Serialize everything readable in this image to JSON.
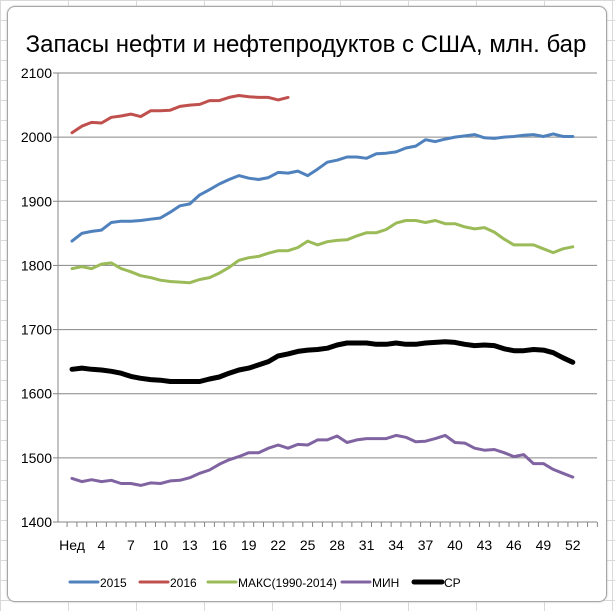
{
  "chart_data": {
    "type": "line",
    "title": "Запасы нефти и нефтепродуктов с США, млн. бар",
    "xlabel": "",
    "ylabel": "",
    "ylim": [
      1400,
      2100
    ],
    "yticks": [
      "1400",
      "1500",
      "1600",
      "1700",
      "1800",
      "1900",
      "2000",
      "2100"
    ],
    "xtick_labels": [
      {
        "week": 1,
        "label": "Нед"
      },
      {
        "week": 4,
        "label": "4"
      },
      {
        "week": 7,
        "label": "7"
      },
      {
        "week": 10,
        "label": "10"
      },
      {
        "week": 13,
        "label": "13"
      },
      {
        "week": 16,
        "label": "16"
      },
      {
        "week": 19,
        "label": "19"
      },
      {
        "week": 22,
        "label": "22"
      },
      {
        "week": 25,
        "label": "25"
      },
      {
        "week": 28,
        "label": "28"
      },
      {
        "week": 31,
        "label": "31"
      },
      {
        "week": 34,
        "label": "34"
      },
      {
        "week": 37,
        "label": "37"
      },
      {
        "week": 40,
        "label": "40"
      },
      {
        "week": 43,
        "label": "43"
      },
      {
        "week": 46,
        "label": "46"
      },
      {
        "week": 49,
        "label": "49"
      },
      {
        "week": 52,
        "label": "52"
      }
    ],
    "grid": true,
    "legend": "bottom",
    "series": [
      {
        "name": "2015",
        "color": "#4f81bd",
        "values": [
          1838,
          1850,
          1853,
          1855,
          1867,
          1869,
          1869,
          1870,
          1872,
          1874,
          1883,
          1893,
          1896,
          1910,
          1918,
          1927,
          1934,
          1940,
          1936,
          1934,
          1937,
          1945,
          1944,
          1947,
          1940,
          1950,
          1961,
          1964,
          1969,
          1969,
          1967,
          1974,
          1975,
          1977,
          1983,
          1986,
          1996,
          1993,
          1997,
          2000,
          2002,
          2004,
          1999,
          1998,
          2000,
          2001,
          2003,
          2004,
          2001,
          2005,
          2001,
          2001
        ]
      },
      {
        "name": "2016",
        "color": "#c0504d",
        "values": [
          2007,
          2017,
          2023,
          2022,
          2031,
          2033,
          2036,
          2032,
          2041,
          2041,
          2042,
          2048,
          2050,
          2051,
          2057,
          2057,
          2062,
          2065,
          2063,
          2062,
          2062,
          2058,
          2062
        ]
      },
      {
        "name": "МАКС(1990-2014)",
        "color": "#9bbb59",
        "values": [
          1795,
          1798,
          1795,
          1802,
          1804,
          1795,
          1790,
          1784,
          1781,
          1777,
          1775,
          1774,
          1773,
          1778,
          1781,
          1788,
          1797,
          1808,
          1812,
          1814,
          1819,
          1823,
          1823,
          1828,
          1838,
          1832,
          1837,
          1839,
          1840,
          1846,
          1851,
          1851,
          1856,
          1866,
          1870,
          1870,
          1867,
          1870,
          1865,
          1865,
          1860,
          1857,
          1859,
          1852,
          1841,
          1832,
          1832,
          1832,
          1826,
          1820,
          1826,
          1829
        ]
      },
      {
        "name": "МИН",
        "color": "#8064a2",
        "values": [
          1468,
          1463,
          1466,
          1463,
          1465,
          1460,
          1460,
          1457,
          1461,
          1460,
          1464,
          1465,
          1469,
          1476,
          1481,
          1490,
          1497,
          1502,
          1508,
          1508,
          1515,
          1520,
          1515,
          1521,
          1520,
          1528,
          1528,
          1534,
          1524,
          1528,
          1530,
          1530,
          1530,
          1535,
          1532,
          1525,
          1526,
          1530,
          1535,
          1524,
          1523,
          1515,
          1512,
          1513,
          1508,
          1502,
          1505,
          1491,
          1491,
          1482,
          1476,
          1470
        ]
      },
      {
        "name": "СР",
        "color": "#000000",
        "values": [
          1638,
          1640,
          1638,
          1637,
          1635,
          1632,
          1627,
          1624,
          1622,
          1621,
          1619,
          1619,
          1619,
          1619,
          1623,
          1626,
          1632,
          1637,
          1640,
          1645,
          1650,
          1659,
          1662,
          1666,
          1668,
          1669,
          1671,
          1676,
          1679,
          1679,
          1679,
          1677,
          1677,
          1679,
          1677,
          1677,
          1679,
          1680,
          1681,
          1680,
          1677,
          1675,
          1676,
          1675,
          1670,
          1667,
          1667,
          1669,
          1668,
          1664,
          1656,
          1649
        ]
      }
    ]
  }
}
